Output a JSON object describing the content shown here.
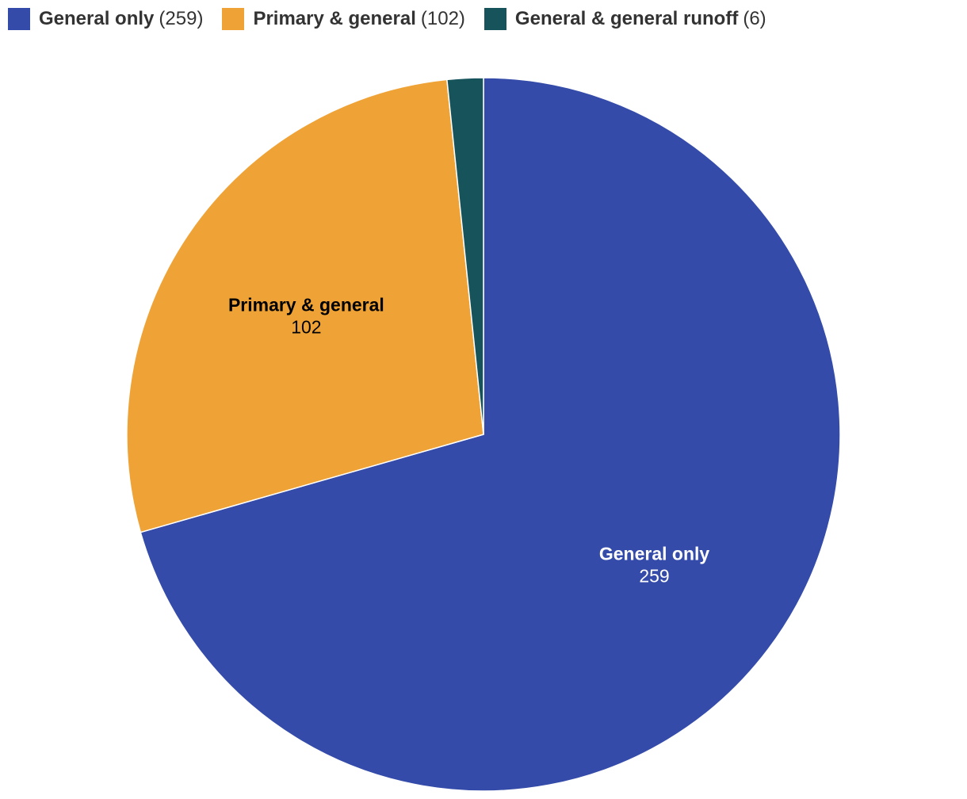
{
  "chart_data": {
    "type": "pie",
    "title": "",
    "categories": [
      "General only",
      "Primary & general",
      "General & general runoff"
    ],
    "values": [
      259,
      102,
      6
    ],
    "colors": [
      "#344ba9",
      "#efa336",
      "#16535b"
    ],
    "label_colors": [
      "#ffffff",
      "#000000",
      "#ffffff"
    ],
    "slice_labels_shown": [
      true,
      true,
      false
    ],
    "legend": {
      "position": "top-left",
      "items": [
        {
          "label": "General only",
          "count": "259"
        },
        {
          "label": "Primary & general",
          "count": "102"
        },
        {
          "label": "General & general runoff",
          "count": "6"
        }
      ]
    }
  }
}
